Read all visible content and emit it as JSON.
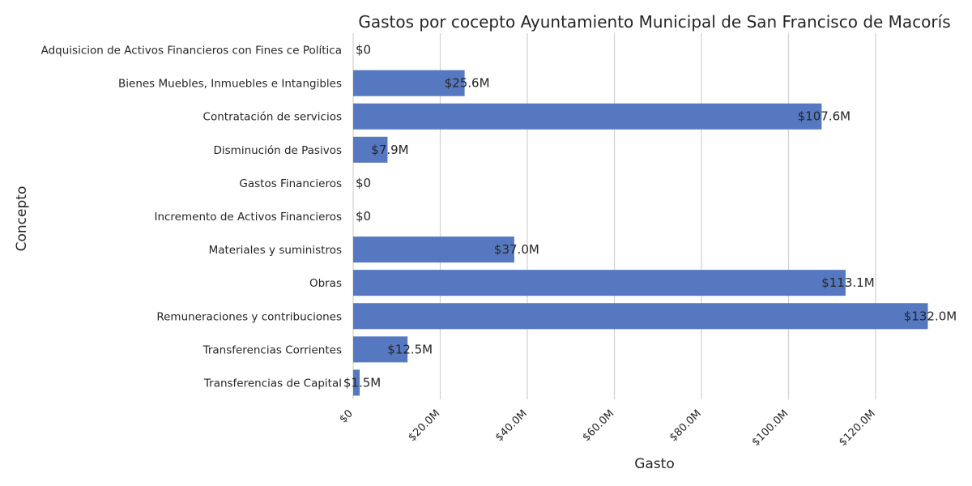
{
  "chart_data": {
    "type": "bar",
    "orientation": "horizontal",
    "title": "Gastos por cocepto Ayuntamiento Municipal de San Francisco de Macorís",
    "xlabel": "Gasto",
    "ylabel": "Concepto",
    "categories": [
      "Adquisicion de Activos Financieros con Fines ce Política",
      "Bienes Muebles, Inmuebles e Intangibles",
      "Contratación de servicios",
      "Disminución de Pasivos",
      "Gastos Financieros",
      "Incremento de Activos Financieros",
      "Materiales y suministros",
      "Obras",
      "Remuneraciones y contribuciones",
      "Transferencias Corrientes",
      "Transferencias de Capital"
    ],
    "values": [
      0,
      25600000,
      107600000,
      7900000,
      0,
      0,
      37000000,
      113100000,
      132000000,
      12500000,
      1500000
    ],
    "value_labels": [
      "$0",
      "$25.6M",
      "$107.6M",
      "$7.9M",
      "$0",
      "$0",
      "$37.0M",
      "$113.1M",
      "$132.0M",
      "$12.5M",
      "$1.5M"
    ],
    "xticks": [
      0,
      20000000,
      40000000,
      60000000,
      80000000,
      100000000,
      120000000
    ],
    "xtick_labels": [
      "$0",
      "$20.0M",
      "$40.0M",
      "$60.0M",
      "$80.0M",
      "$100.0M",
      "$120.0M"
    ],
    "xlim": [
      0,
      138600000
    ],
    "grid": true,
    "bar_color": "#5578c1",
    "grid_color": "#d0d0d0"
  }
}
